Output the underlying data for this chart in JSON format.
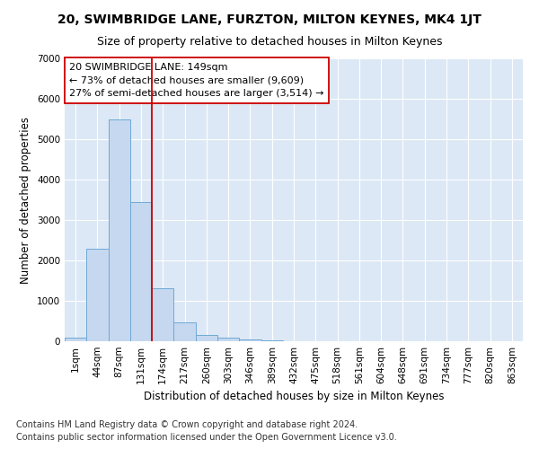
{
  "title1": "20, SWIMBRIDGE LANE, FURZTON, MILTON KEYNES, MK4 1JT",
  "title2": "Size of property relative to detached houses in Milton Keynes",
  "xlabel": "Distribution of detached houses by size in Milton Keynes",
  "ylabel": "Number of detached properties",
  "footnote1": "Contains HM Land Registry data © Crown copyright and database right 2024.",
  "footnote2": "Contains public sector information licensed under the Open Government Licence v3.0.",
  "annotation_line1": "20 SWIMBRIDGE LANE: 149sqm",
  "annotation_line2": "← 73% of detached houses are smaller (9,609)",
  "annotation_line3": "27% of semi-detached houses are larger (3,514) →",
  "bar_color": "#c5d8f0",
  "bar_edge_color": "#6fa8d6",
  "fig_background_color": "#ffffff",
  "ax_background_color": "#dce8f5",
  "grid_color": "#ffffff",
  "vline_color": "#cc0000",
  "vline_x": 3.5,
  "categories": [
    "1sqm",
    "44sqm",
    "87sqm",
    "131sqm",
    "174sqm",
    "217sqm",
    "260sqm",
    "303sqm",
    "346sqm",
    "389sqm",
    "432sqm",
    "475sqm",
    "518sqm",
    "561sqm",
    "604sqm",
    "648sqm",
    "691sqm",
    "734sqm",
    "777sqm",
    "820sqm",
    "863sqm"
  ],
  "values": [
    80,
    2280,
    5480,
    3450,
    1320,
    470,
    155,
    80,
    50,
    30,
    0,
    0,
    0,
    0,
    0,
    0,
    0,
    0,
    0,
    0,
    0
  ],
  "ylim": [
    0,
    7000
  ],
  "yticks": [
    0,
    1000,
    2000,
    3000,
    4000,
    5000,
    6000,
    7000
  ],
  "title1_fontsize": 10,
  "title2_fontsize": 9,
  "xlabel_fontsize": 8.5,
  "ylabel_fontsize": 8.5,
  "tick_fontsize": 7.5,
  "footnote_fontsize": 7,
  "annotation_fontsize": 8
}
